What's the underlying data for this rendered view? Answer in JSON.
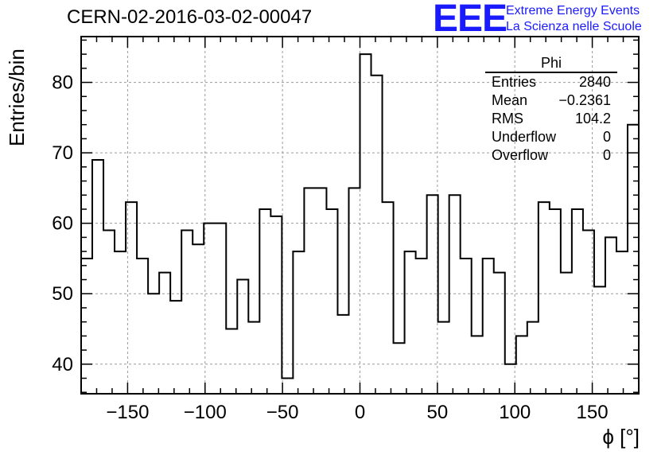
{
  "title": "CERN-02-2016-03-02-00047",
  "logo": {
    "mark": "EEE",
    "line1": "Extreme Energy Events",
    "line2": "La Scienza nelle Scuole",
    "color": "#1a1aff"
  },
  "stats": {
    "name": "Phi",
    "rows": [
      {
        "label": "Entries",
        "value": "2840"
      },
      {
        "label": "Mean",
        "value": "−0.2361"
      },
      {
        "label": "RMS",
        "value": "104.2"
      },
      {
        "label": "Underflow",
        "value": "0"
      },
      {
        "label": "Overflow",
        "value": "0"
      }
    ]
  },
  "chart_data": {
    "type": "histogram",
    "xlabel": "ϕ [°]",
    "ylabel": "Entries/bin",
    "xlim": [
      -180,
      180
    ],
    "ylim": [
      35.8,
      86.5
    ],
    "bin_width": 7.2,
    "x_ticks": [
      -150,
      -100,
      -50,
      0,
      50,
      100,
      150
    ],
    "y_ticks": [
      40,
      50,
      60,
      70,
      80
    ],
    "grid": true,
    "line_color": "#000000",
    "values": [
      55,
      69,
      59,
      56,
      63,
      55,
      50,
      53,
      49,
      59,
      57,
      60,
      60,
      45,
      52,
      46,
      62,
      61,
      38,
      56,
      65,
      65,
      62,
      47,
      65,
      84,
      81,
      63,
      43,
      56,
      55,
      64,
      46,
      64,
      55,
      44,
      55,
      53,
      40,
      44,
      46,
      63,
      62,
      53,
      62,
      59,
      51,
      58,
      56,
      74
    ]
  }
}
